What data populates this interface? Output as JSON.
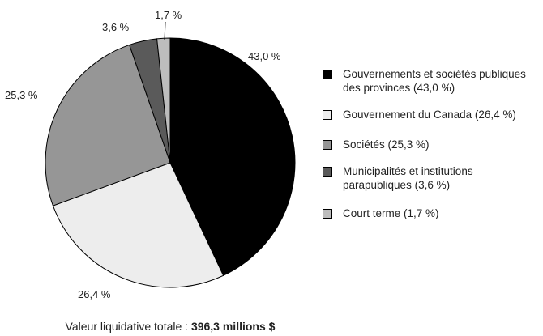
{
  "chart_data": {
    "type": "pie",
    "title": "",
    "start_angle_deg": 0,
    "direction": "clockwise",
    "slices": [
      {
        "label": "Gouvernements et sociétés publiques des provinces (43,0 %)",
        "value": 43.0,
        "value_label": "43,0 %",
        "color": "#000000"
      },
      {
        "label": "Gouvernement du Canada (26,4 %)",
        "value": 26.4,
        "value_label": "26,4 %",
        "color": "#ededed"
      },
      {
        "label": "Sociétés (25,3 %)",
        "value": 25.3,
        "value_label": "25,3 %",
        "color": "#969696"
      },
      {
        "label": "Municipalités et institutions parapubliques (3,6 %)",
        "value": 3.6,
        "value_label": "3,6 %",
        "color": "#5a5a5a"
      },
      {
        "label": "Court terme (1,7 %)",
        "value": 1.7,
        "value_label": "1,7 %",
        "color": "#bdbdbd"
      }
    ],
    "legend": {
      "position": "right",
      "items": [
        {
          "text": "Gouvernements et sociétés publiques des provinces (43,0 %)",
          "color": "#000000"
        },
        {
          "text": "Gouvernement du Canada (26,4 %)",
          "color": "#ededed"
        },
        {
          "text": "Sociétés (25,3 %)",
          "color": "#969696"
        },
        {
          "text": "Municipalités et institutions parapubliques (3,6 %)",
          "color": "#5a5a5a"
        },
        {
          "text": "Court terme (1,7 %)",
          "color": "#bdbdbd"
        }
      ]
    }
  },
  "footer": {
    "total_prefix": "Valeur liquidative totale : ",
    "total_value": "396,3 millions $"
  }
}
